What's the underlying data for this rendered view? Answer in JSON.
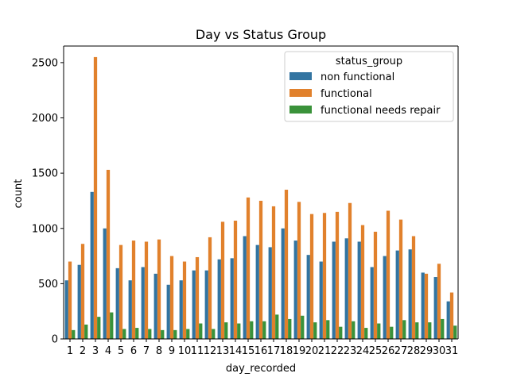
{
  "chart_data": {
    "type": "bar",
    "title": "Day vs Status Group",
    "xlabel": "day_recorded",
    "ylabel": "count",
    "ylim": [
      0,
      2650
    ],
    "yticks": [
      0,
      500,
      1000,
      1500,
      2000,
      2500
    ],
    "grid": false,
    "legend": {
      "title": "status_group",
      "position": "top-right"
    },
    "categories": [
      "1",
      "2",
      "3",
      "4",
      "5",
      "6",
      "7",
      "8",
      "9",
      "10",
      "11",
      "12",
      "13",
      "14",
      "15",
      "16",
      "17",
      "18",
      "19",
      "20",
      "21",
      "22",
      "23",
      "24",
      "25",
      "26",
      "27",
      "28",
      "29",
      "30",
      "31"
    ],
    "series": [
      {
        "name": "non functional",
        "color": "#3274a1",
        "values": [
          530,
          670,
          1330,
          1000,
          640,
          530,
          650,
          590,
          490,
          530,
          620,
          620,
          720,
          730,
          930,
          850,
          830,
          1000,
          890,
          760,
          700,
          880,
          910,
          880,
          650,
          750,
          800,
          810,
          600,
          560,
          340
        ]
      },
      {
        "name": "functional",
        "color": "#e1812c",
        "values": [
          700,
          860,
          2550,
          1530,
          850,
          890,
          880,
          900,
          750,
          700,
          740,
          920,
          1060,
          1070,
          1280,
          1250,
          1200,
          1350,
          1240,
          1130,
          1140,
          1150,
          1230,
          1030,
          970,
          1160,
          1080,
          930,
          590,
          680,
          420
        ]
      },
      {
        "name": "functional needs repair",
        "color": "#3a923a",
        "values": [
          80,
          130,
          200,
          240,
          90,
          100,
          90,
          80,
          80,
          90,
          140,
          90,
          150,
          140,
          160,
          160,
          220,
          180,
          210,
          150,
          170,
          110,
          160,
          100,
          140,
          110,
          170,
          150,
          150,
          180,
          120
        ]
      }
    ]
  }
}
